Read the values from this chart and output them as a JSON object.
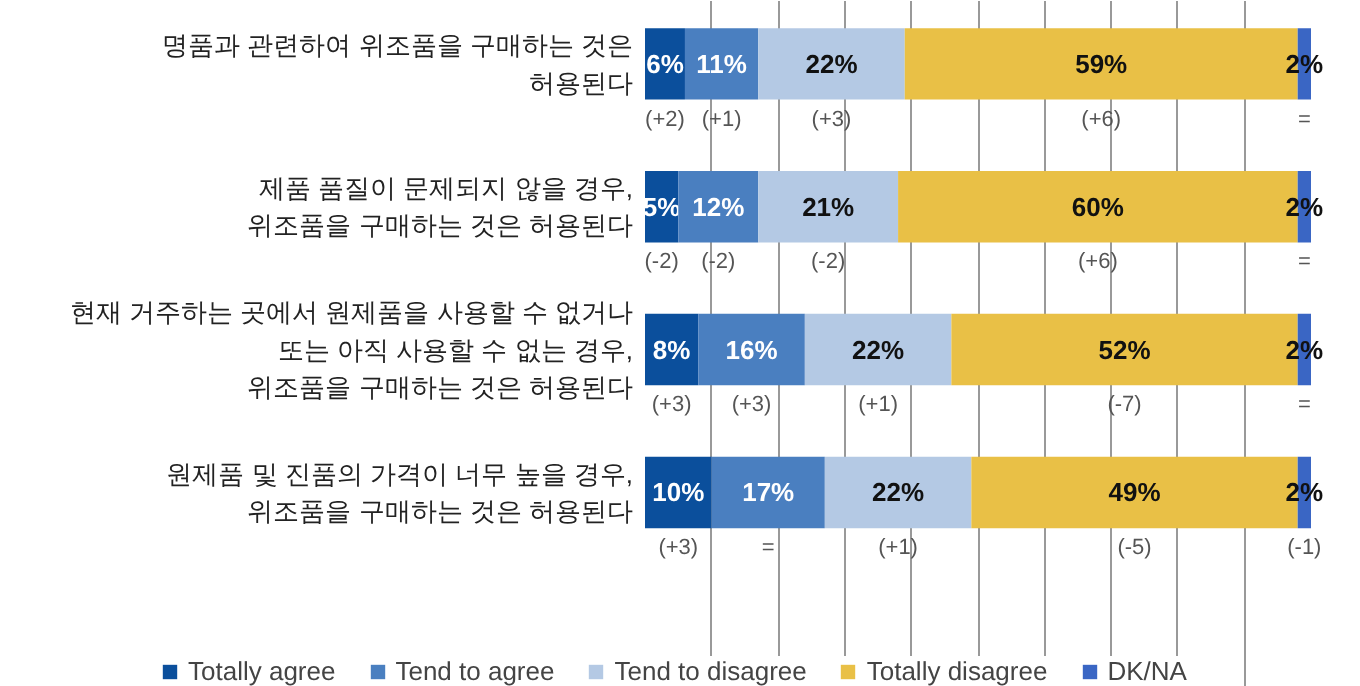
{
  "chart_data": {
    "type": "bar",
    "orientation": "horizontal",
    "stacked": true,
    "grid": "x",
    "legend": "bottom",
    "tick_labels": "y",
    "categories": [
      "명품과 관련하여 위조품을 구매하는 것은\n허용된다",
      "제품 품질이 문제되지 않을 경우,\n위조품을 구매하는 것은 허용된다",
      "현재 거주하는 곳에서 원제품을 사용할 수 없거나\n또는 아직 사용할 수 없는 경우,\n위조품을 구매하는 것은 허용된다",
      "원제품 및 진품의 가격이 너무 높을 경우,\n위조품을 구매하는 것은 허용된다"
    ],
    "series": [
      {
        "name": "Totally agree",
        "color": "#0b4f9c",
        "values": [
          6,
          5,
          8,
          10
        ],
        "value_labels": [
          "6%",
          "5%",
          "8%",
          "10%"
        ]
      },
      {
        "name": "Tend to agree",
        "color": "#4a7fc0",
        "values": [
          11,
          12,
          16,
          17
        ],
        "value_labels": [
          "11%",
          "12%",
          "16%",
          "17%"
        ]
      },
      {
        "name": "Tend to disagree",
        "color": "#b4c9e4",
        "values": [
          22,
          21,
          22,
          22
        ],
        "value_labels": [
          "22%",
          "21%",
          "22%",
          "22%"
        ]
      },
      {
        "name": "Totally disagree",
        "color": "#e9c046",
        "values": [
          59,
          60,
          52,
          49
        ],
        "value_labels": [
          "59%",
          "60%",
          "52%",
          "49%"
        ]
      },
      {
        "name": "DK/NA",
        "color": "#3a66c4",
        "values": [
          2,
          2,
          2,
          2
        ],
        "value_labels": [
          "2%",
          "2%",
          "2%",
          "2%"
        ]
      }
    ],
    "annotations": [
      "(+2)",
      "(+1)",
      "(+3)",
      "(+6)",
      "=",
      "(-2)",
      "(-2)",
      "(-2)",
      "(+6)",
      "=",
      "(+3)",
      "(+3)",
      "(+1)",
      "(-7)",
      "=",
      "(+3)",
      "=",
      "(+1)",
      "(-5)",
      "(-1)"
    ]
  }
}
